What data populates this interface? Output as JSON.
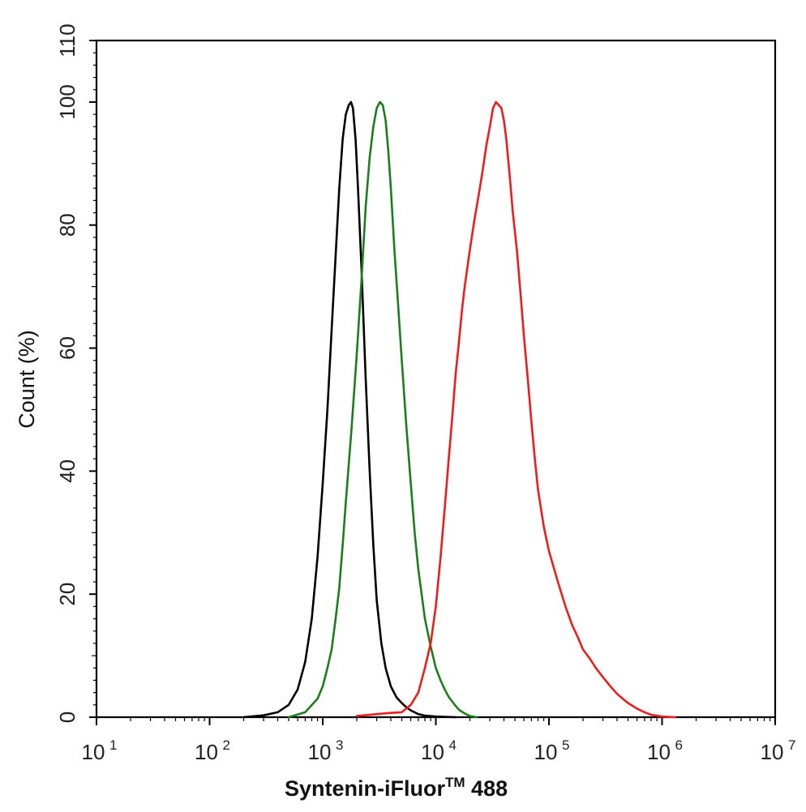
{
  "chart_data": {
    "type": "line",
    "xscale": "log",
    "xlim": [
      10,
      10000000
    ],
    "ylim": [
      0,
      110
    ],
    "ylabel": "Count  (%)",
    "xlabel_main": "Syntenin-iFluor",
    "xlabel_sup": "TM",
    "xlabel_tail": " 488",
    "x_ticks": [
      {
        "base": "10",
        "exp": "1"
      },
      {
        "base": "10",
        "exp": "2"
      },
      {
        "base": "10",
        "exp": "3"
      },
      {
        "base": "10",
        "exp": "4"
      },
      {
        "base": "10",
        "exp": "5"
      },
      {
        "base": "10",
        "exp": "6"
      },
      {
        "base": "10",
        "exp": "7"
      }
    ],
    "y_ticks": [
      "0",
      "20",
      "40",
      "60",
      "80",
      "100",
      "110"
    ],
    "series": [
      {
        "color": "#000000",
        "x": [
          200,
          300,
          400,
          500,
          600,
          700,
          800,
          900,
          1000,
          1100,
          1200,
          1300,
          1400,
          1500,
          1600,
          1700,
          1780,
          1850,
          1950,
          2050,
          2200,
          2400,
          2600,
          2800,
          3000,
          3300,
          3600,
          4000,
          4500,
          5000,
          5500,
          6000,
          7000,
          8000,
          10000,
          15000
        ],
        "y": [
          0,
          0.3,
          0.8,
          2,
          4.5,
          9,
          16,
          26,
          38,
          50,
          63,
          75,
          86,
          94,
          98,
          99.5,
          100,
          99,
          94,
          86,
          73,
          55,
          40,
          28,
          19,
          12,
          8,
          5,
          3.2,
          2.3,
          1.6,
          1.1,
          0.5,
          0.25,
          0.1,
          0
        ]
      },
      {
        "color": "#1a7f1a",
        "x": [
          500,
          700,
          900,
          1000,
          1100,
          1200,
          1300,
          1400,
          1500,
          1600,
          1800,
          2000,
          2200,
          2400,
          2600,
          2800,
          3000,
          3200,
          3400,
          3600,
          3800,
          4000,
          4300,
          4600,
          5000,
          5500,
          6000,
          6500,
          7000,
          8000,
          9000,
          10000,
          11000,
          12000,
          13000,
          14000,
          15000,
          16000,
          18000,
          20000,
          23000
        ],
        "y": [
          0,
          0.8,
          3,
          5,
          8,
          11,
          16,
          21,
          28,
          35,
          47,
          59,
          71,
          83,
          91,
          96,
          99,
          100,
          99.5,
          97,
          92,
          86,
          76,
          68,
          58,
          47,
          38,
          30,
          24,
          16,
          11.5,
          8,
          6,
          4.5,
          3.3,
          2.5,
          1.8,
          1.2,
          0.6,
          0.2,
          0
        ]
      },
      {
        "color": "#ee1c1c",
        "x": [
          2000,
          3000,
          4000,
          5000,
          6000,
          7000,
          8000,
          9000,
          10000,
          11000,
          12000,
          13000,
          14000,
          15000,
          16000,
          17000,
          18000,
          20000,
          22000,
          24000,
          26000,
          28000,
          30000,
          32000,
          34000,
          36000,
          38000,
          40000,
          42000,
          45000,
          48000,
          52000,
          56000,
          60000,
          65000,
          70000,
          75000,
          80000,
          90000,
          100000,
          120000,
          140000,
          160000,
          180000,
          200000,
          230000,
          260000,
          300000,
          350000,
          400000,
          450000,
          500000,
          600000,
          700000,
          800000,
          1000000,
          1300000
        ],
        "y": [
          0.2,
          0.5,
          0.7,
          0.8,
          2,
          4,
          8,
          12,
          18,
          26,
          34,
          42,
          49,
          56,
          61,
          66,
          70,
          76,
          81,
          85,
          89,
          93,
          96,
          99,
          100,
          99.5,
          99,
          97,
          94,
          88,
          82,
          76,
          69,
          62,
          55,
          48,
          42,
          37,
          31,
          27,
          22,
          18,
          15,
          13,
          11,
          9.5,
          8,
          6.5,
          5,
          3.8,
          3,
          2.3,
          1.4,
          0.8,
          0.4,
          0.1,
          0
        ]
      }
    ]
  }
}
